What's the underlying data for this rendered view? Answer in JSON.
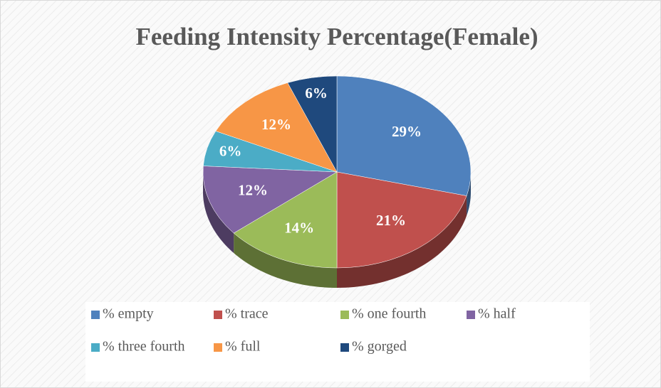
{
  "chart_data": {
    "type": "pie",
    "title": "Feeding Intensity Percentage(Female)",
    "categories": [
      "% empty",
      "% trace",
      "% one fourth",
      "% half",
      "% three fourth",
      "% full",
      "% gorged"
    ],
    "values": [
      29,
      21,
      14,
      12,
      6,
      12,
      6
    ],
    "value_labels": [
      "29%",
      "21%",
      "14%",
      "12%",
      "6%",
      "12%",
      "6%"
    ],
    "colors": [
      "#4f81bd",
      "#c0504d",
      "#9bbb59",
      "#8064a2",
      "#4bacc6",
      "#f79646",
      "#1f497d"
    ],
    "legend": "bottom"
  }
}
